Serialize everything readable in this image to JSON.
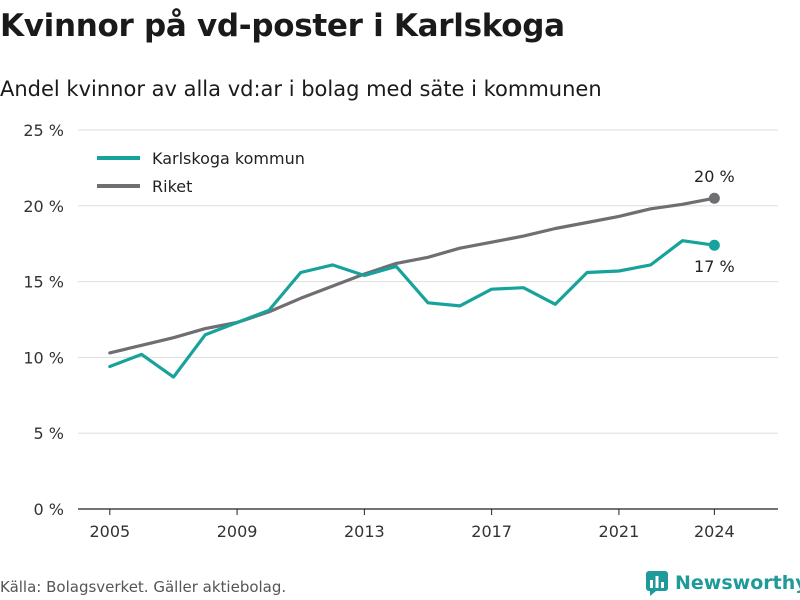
{
  "title": "Kvinnor på vd-poster i Karlskoga",
  "subtitle": "Andel kvinnor av alla vd:ar i bolag med säte i kommunen",
  "source": "Källa: Bolagsverket. Gäller aktiebolag.",
  "brand": {
    "name": "Newsworthy",
    "color": "#1e9a9a",
    "icon": "newsworthy-logo-icon"
  },
  "chart_data": {
    "type": "line",
    "x": [
      2005,
      2006,
      2007,
      2008,
      2009,
      2010,
      2011,
      2012,
      2013,
      2014,
      2015,
      2016,
      2017,
      2018,
      2019,
      2020,
      2021,
      2022,
      2023,
      2024
    ],
    "series": [
      {
        "name": "Karlskoga kommun",
        "color": "#17a39b",
        "values": [
          9.4,
          10.2,
          8.7,
          11.5,
          12.3,
          13.1,
          15.6,
          16.1,
          15.4,
          16.0,
          13.6,
          13.4,
          14.5,
          14.6,
          13.5,
          15.6,
          15.7,
          16.1,
          17.7,
          17.4
        ],
        "end_label": "17 %"
      },
      {
        "name": "Riket",
        "color": "#6e6e73",
        "values": [
          10.3,
          10.8,
          11.3,
          11.9,
          12.3,
          13.0,
          13.9,
          14.7,
          15.5,
          16.2,
          16.6,
          17.2,
          17.6,
          18.0,
          18.5,
          18.9,
          19.3,
          19.8,
          20.1,
          20.5
        ],
        "end_label": "20 %"
      }
    ],
    "ylim": [
      0,
      25
    ],
    "yticks": [
      0,
      5,
      10,
      15,
      20,
      25
    ],
    "ytick_labels": [
      "0 %",
      "5 %",
      "10 %",
      "15 %",
      "20 %",
      "25 %"
    ],
    "xticks": [
      2005,
      2009,
      2013,
      2017,
      2021,
      2024
    ],
    "xtick_labels": [
      "2005",
      "2009",
      "2013",
      "2017",
      "2021",
      "2024"
    ],
    "grid": "horizontal",
    "legend": "top-left"
  }
}
